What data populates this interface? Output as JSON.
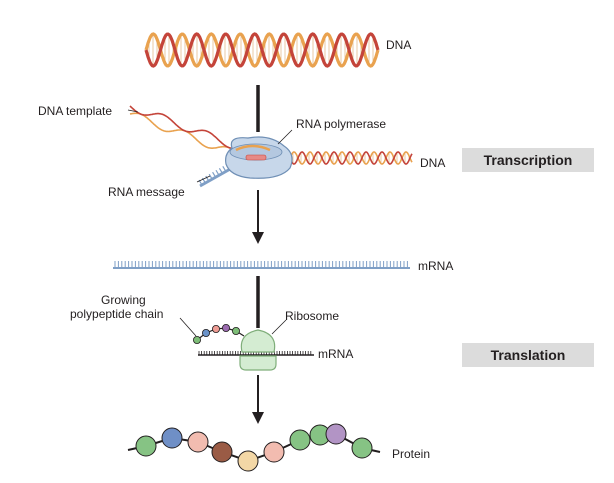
{
  "labels": {
    "dna_top": "DNA",
    "dna_template": "DNA template",
    "rna_polymerase": "RNA polymerase",
    "dna_right": "DNA",
    "rna_message": "RNA message",
    "mrna_long": "mRNA",
    "growing_chain_line1": "Growing",
    "growing_chain_line2": "polypeptide chain",
    "ribosome": "Ribosome",
    "mrna_short": "mRNA",
    "protein": "Protein"
  },
  "stages": {
    "transcription": "Transcription",
    "translation": "Translation"
  },
  "colors": {
    "strand_red": "#c4443a",
    "strand_orange": "#e9a24f",
    "rung": "#e8c9a4",
    "polymerase_fill": "#c7d7ea",
    "polymerase_stroke": "#6f8fb5",
    "rna_message_blue": "#7f9fc6",
    "ribosome_fill": "#d4ecd2",
    "ribosome_stroke": "#7fae7a",
    "stage_bg": "#dcdcdc",
    "arrow": "#231f20"
  },
  "chain_bead_colors": [
    "#7dbd77",
    "#6b93c9",
    "#ee9c94",
    "#9b6bb0",
    "#7dbd77"
  ],
  "protein_bead_colors": [
    "#86c384",
    "#6f8fc6",
    "#f2bcb0",
    "#9a5b45",
    "#f3d7a6",
    "#f2bcb0",
    "#86c384",
    "#86c384",
    "#b294c5",
    "#86c384"
  ]
}
